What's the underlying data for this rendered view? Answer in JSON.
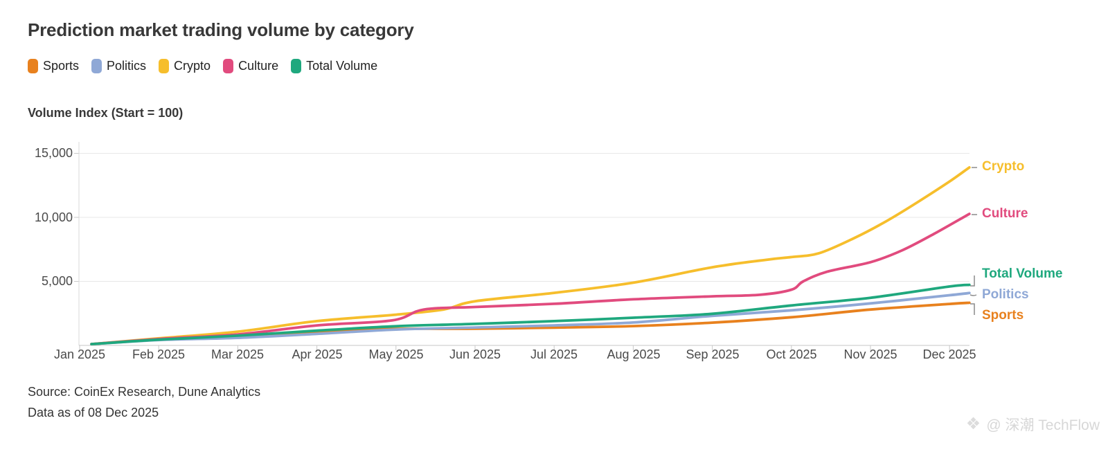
{
  "title": "Prediction market trading volume by category",
  "legend": {
    "items": [
      {
        "label": "Sports",
        "color": "#E8811E"
      },
      {
        "label": "Politics",
        "color": "#8FA8D6"
      },
      {
        "label": "Crypto",
        "color": "#F6BE2C"
      },
      {
        "label": "Culture",
        "color": "#E14B7E"
      },
      {
        "label": "Total Volume",
        "color": "#1FA87E"
      }
    ]
  },
  "y_axis": {
    "title": "Volume Index (Start = 100)",
    "ticks": [
      {
        "label": "15,000",
        "value": 15000
      },
      {
        "label": "10,000",
        "value": 10000
      },
      {
        "label": "5,000",
        "value": 5000
      }
    ]
  },
  "x_axis": {
    "ticks": [
      "Jan 2025",
      "Feb 2025",
      "Mar 2025",
      "Apr 2025",
      "May 2025",
      "Jun 2025",
      "Jul 2025",
      "Aug 2025",
      "Sep 2025",
      "Oct 2025",
      "Nov 2025",
      "Dec 2025"
    ]
  },
  "end_labels": [
    {
      "text": "Crypto",
      "color": "#F6BE2C"
    },
    {
      "text": "Culture",
      "color": "#E14B7E"
    },
    {
      "text": "Total Volume",
      "color": "#1FA87E"
    },
    {
      "text": "Politics",
      "color": "#8FA8D6"
    },
    {
      "text": "Sports",
      "color": "#E8811E"
    }
  ],
  "footer": {
    "source": "Source: CoinEx Research, Dune Analytics",
    "as_of": "Data as of 08 Dec 2025"
  },
  "watermark": {
    "handle": "@ 深潮 TechFlow"
  },
  "chart_data": {
    "type": "line",
    "title": "Prediction market trading volume by category",
    "ylabel": "Volume Index (Start = 100)",
    "x_unit": "month_index_0_is_jan_2025",
    "x_categories": [
      "Jan 2025",
      "Feb 2025",
      "Mar 2025",
      "Apr 2025",
      "May 2025",
      "Jun 2025",
      "Jul 2025",
      "Aug 2025",
      "Sep 2025",
      "Oct 2025",
      "Nov 2025",
      "Dec 2025"
    ],
    "ylim": [
      0,
      15800
    ],
    "grid": true,
    "grid_values": [
      5000,
      10000,
      15000
    ],
    "legend_position": "top-left",
    "series": [
      {
        "name": "Sports",
        "color": "#E8811E",
        "points": [
          [
            0.15,
            100
          ],
          [
            1,
            460
          ],
          [
            2,
            750
          ],
          [
            3,
            1080
          ],
          [
            4,
            1290
          ],
          [
            5,
            1300
          ],
          [
            6,
            1390
          ],
          [
            7,
            1510
          ],
          [
            8,
            1780
          ],
          [
            9,
            2200
          ],
          [
            10,
            2800
          ],
          [
            11,
            3240
          ],
          [
            11.25,
            3330
          ]
        ]
      },
      {
        "name": "Politics",
        "color": "#8FA8D6",
        "points": [
          [
            0.15,
            100
          ],
          [
            1,
            420
          ],
          [
            2,
            590
          ],
          [
            3,
            900
          ],
          [
            4,
            1240
          ],
          [
            5,
            1400
          ],
          [
            6,
            1560
          ],
          [
            7,
            1790
          ],
          [
            8,
            2310
          ],
          [
            9,
            2740
          ],
          [
            10,
            3280
          ],
          [
            11,
            3920
          ],
          [
            11.25,
            4090
          ]
        ]
      },
      {
        "name": "Crypto",
        "color": "#F6BE2C",
        "points": [
          [
            0.15,
            100
          ],
          [
            1,
            550
          ],
          [
            2,
            1075
          ],
          [
            3,
            1900
          ],
          [
            4,
            2400
          ],
          [
            4.6,
            2800
          ],
          [
            5,
            3450
          ],
          [
            6,
            4100
          ],
          [
            7,
            4900
          ],
          [
            8,
            6100
          ],
          [
            8.7,
            6700
          ],
          [
            9,
            6900
          ],
          [
            9.35,
            7200
          ],
          [
            9.8,
            8400
          ],
          [
            10.2,
            9700
          ],
          [
            10.6,
            11200
          ],
          [
            11,
            12800
          ],
          [
            11.25,
            13900
          ]
        ]
      },
      {
        "name": "Culture",
        "color": "#E14B7E",
        "points": [
          [
            0.15,
            100
          ],
          [
            1,
            500
          ],
          [
            2,
            860
          ],
          [
            3,
            1560
          ],
          [
            3.95,
            1950
          ],
          [
            4.35,
            2800
          ],
          [
            5,
            3000
          ],
          [
            6,
            3250
          ],
          [
            7,
            3600
          ],
          [
            8,
            3830
          ],
          [
            8.6,
            3950
          ],
          [
            9,
            4350
          ],
          [
            9.15,
            5000
          ],
          [
            9.45,
            5750
          ],
          [
            10,
            6500
          ],
          [
            10.4,
            7420
          ],
          [
            10.8,
            8700
          ],
          [
            11.25,
            10270
          ]
        ]
      },
      {
        "name": "Total Volume",
        "color": "#1FA87E",
        "points": [
          [
            0.15,
            100
          ],
          [
            1,
            450
          ],
          [
            2,
            760
          ],
          [
            3,
            1150
          ],
          [
            4,
            1500
          ],
          [
            5,
            1680
          ],
          [
            6,
            1900
          ],
          [
            7,
            2160
          ],
          [
            8,
            2470
          ],
          [
            9,
            3120
          ],
          [
            10,
            3720
          ],
          [
            11,
            4600
          ],
          [
            11.25,
            4730
          ]
        ]
      }
    ]
  }
}
